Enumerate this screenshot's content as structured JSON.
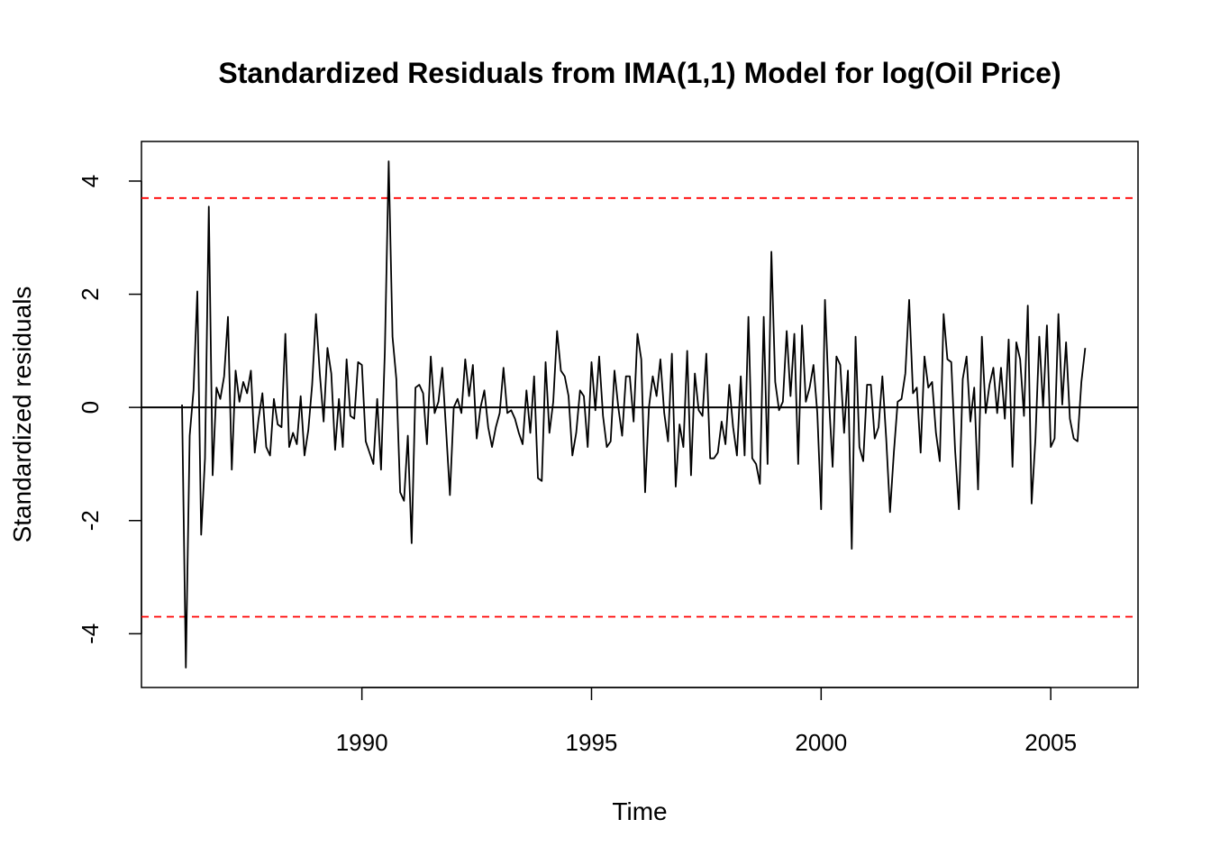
{
  "chart_data": {
    "type": "line",
    "title": "Standardized Residuals from IMA(1,1) Model for log(Oil Price)",
    "xlabel": "Time",
    "ylabel": "Standardized residuals",
    "xlim": [
      1985.2,
      2006.9
    ],
    "ylim": [
      -4.95,
      4.7
    ],
    "x_ticks": [
      1990,
      1995,
      2000,
      2005
    ],
    "y_ticks": [
      -4,
      -2,
      0,
      2,
      4
    ],
    "x_tick_labels": [
      "1990",
      "1995",
      "2000",
      "2005"
    ],
    "y_tick_labels": [
      "-4",
      "-2",
      "0",
      "2",
      "4"
    ],
    "hlines": [
      {
        "y": 0,
        "color": "#000000",
        "style": "solid"
      },
      {
        "y": 3.7,
        "color": "#ff0000",
        "style": "dashed"
      },
      {
        "y": -3.7,
        "color": "#ff0000",
        "style": "dashed"
      }
    ],
    "line_color": "#000000",
    "series": [
      {
        "start": [
          1986,
          2
        ],
        "frequency": 12,
        "values": [
          0.05,
          -4.6,
          -0.5,
          0.3,
          2.05,
          -2.25,
          -0.9,
          3.55,
          -1.2,
          0.35,
          0.15,
          0.55,
          1.6,
          -1.1,
          0.65,
          0.1,
          0.45,
          0.25,
          0.65,
          -0.8,
          -0.2,
          0.25,
          -0.7,
          -0.85,
          0.15,
          -0.3,
          -0.35,
          1.3,
          -0.7,
          -0.45,
          -0.65,
          0.2,
          -0.85,
          -0.4,
          0.4,
          1.65,
          0.6,
          -0.25,
          1.05,
          0.6,
          -0.75,
          0.15,
          -0.7,
          0.85,
          -0.15,
          -0.2,
          0.8,
          0.75,
          -0.6,
          -0.8,
          -1.0,
          0.15,
          -1.1,
          1.0,
          4.35,
          1.25,
          0.5,
          -1.5,
          -1.65,
          -0.5,
          -2.4,
          0.35,
          0.4,
          0.25,
          -0.65,
          0.9,
          -0.1,
          0.1,
          0.7,
          -0.4,
          -1.55,
          0.0,
          0.15,
          -0.1,
          0.85,
          0.2,
          0.75,
          -0.55,
          0.0,
          0.3,
          -0.35,
          -0.7,
          -0.35,
          -0.1,
          0.7,
          -0.1,
          -0.05,
          -0.2,
          -0.45,
          -0.65,
          0.3,
          -0.45,
          0.55,
          -1.25,
          -1.3,
          0.8,
          -0.45,
          0.1,
          1.35,
          0.65,
          0.55,
          0.2,
          -0.85,
          -0.45,
          0.3,
          0.2,
          -0.7,
          0.8,
          -0.05,
          0.9,
          -0.15,
          -0.7,
          -0.6,
          0.65,
          0.0,
          -0.5,
          0.55,
          0.55,
          -0.25,
          1.3,
          0.85,
          -1.5,
          0.0,
          0.55,
          0.2,
          0.85,
          -0.1,
          -0.6,
          0.95,
          -1.4,
          -0.3,
          -0.7,
          1.0,
          -1.2,
          0.6,
          -0.05,
          -0.15,
          0.95,
          -0.9,
          -0.9,
          -0.8,
          -0.25,
          -0.65,
          0.4,
          -0.35,
          -0.85,
          0.55,
          -0.85,
          1.6,
          -0.9,
          -1.0,
          -1.35,
          1.6,
          -1.0,
          2.75,
          0.45,
          -0.05,
          0.1,
          1.35,
          0.2,
          1.3,
          -1.0,
          1.45,
          0.1,
          0.35,
          0.75,
          -0.1,
          -1.8,
          1.9,
          0.2,
          -1.05,
          0.9,
          0.75,
          -0.45,
          0.65,
          -2.5,
          1.25,
          -0.7,
          -0.95,
          0.4,
          0.4,
          -0.55,
          -0.35,
          0.55,
          -0.55,
          -1.85,
          -0.8,
          0.1,
          0.15,
          0.6,
          1.9,
          0.25,
          0.35,
          -0.8,
          0.9,
          0.35,
          0.45,
          -0.45,
          -0.95,
          1.65,
          0.85,
          0.8,
          -0.75,
          -1.8,
          0.5,
          0.9,
          -0.25,
          0.35,
          -1.45,
          1.25,
          -0.1,
          0.4,
          0.7,
          -0.1,
          0.7,
          -0.2,
          1.2,
          -1.05,
          1.15,
          0.85,
          -0.15,
          1.8,
          -1.7,
          -0.55,
          1.25,
          0.0,
          1.45,
          -0.7,
          -0.55,
          1.65,
          0.05,
          1.15,
          -0.2,
          -0.55,
          -0.6,
          0.45,
          1.05
        ]
      }
    ]
  }
}
